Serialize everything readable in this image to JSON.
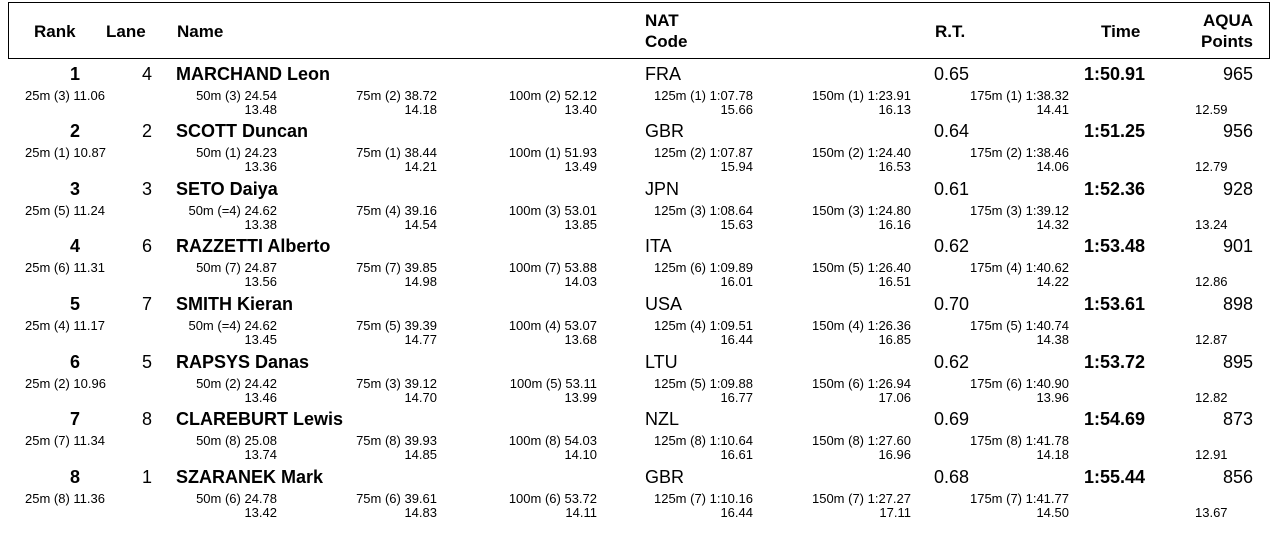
{
  "header": {
    "rank": "Rank",
    "lane": "Lane",
    "name": "Name",
    "nat_line1": "NAT",
    "nat_line2": "Code",
    "rt": "R.T.",
    "time": "Time",
    "points_line1": "AQUA",
    "points_line2": "Points"
  },
  "results": [
    {
      "rank": "1",
      "lane": "4",
      "name": "MARCHAND Leon",
      "nat": "FRA",
      "rt": "0.65",
      "time": "1:50.91",
      "points": "965",
      "splits": [
        {
          "label": "25m (3) 11.06",
          "diff": ""
        },
        {
          "label": "50m (3) 24.54",
          "diff": "13.48"
        },
        {
          "label": "75m (2) 38.72",
          "diff": "14.18"
        },
        {
          "label": "100m (2) 52.12",
          "diff": "13.40"
        },
        {
          "label": "125m (1) 1:07.78",
          "diff": "15.66"
        },
        {
          "label": "150m (1) 1:23.91",
          "diff": "16.13"
        },
        {
          "label": "175m (1) 1:38.32",
          "diff": "14.41"
        }
      ],
      "last_diff": "12.59"
    },
    {
      "rank": "2",
      "lane": "2",
      "name": "SCOTT Duncan",
      "nat": "GBR",
      "rt": "0.64",
      "time": "1:51.25",
      "points": "956",
      "splits": [
        {
          "label": "25m (1) 10.87",
          "diff": ""
        },
        {
          "label": "50m (1) 24.23",
          "diff": "13.36"
        },
        {
          "label": "75m (1) 38.44",
          "diff": "14.21"
        },
        {
          "label": "100m (1) 51.93",
          "diff": "13.49"
        },
        {
          "label": "125m (2) 1:07.87",
          "diff": "15.94"
        },
        {
          "label": "150m (2) 1:24.40",
          "diff": "16.53"
        },
        {
          "label": "175m (2) 1:38.46",
          "diff": "14.06"
        }
      ],
      "last_diff": "12.79"
    },
    {
      "rank": "3",
      "lane": "3",
      "name": "SETO Daiya",
      "nat": "JPN",
      "rt": "0.61",
      "time": "1:52.36",
      "points": "928",
      "splits": [
        {
          "label": "25m (5) 11.24",
          "diff": ""
        },
        {
          "label": "50m (=4) 24.62",
          "diff": "13.38"
        },
        {
          "label": "75m (4) 39.16",
          "diff": "14.54"
        },
        {
          "label": "100m (3) 53.01",
          "diff": "13.85"
        },
        {
          "label": "125m (3) 1:08.64",
          "diff": "15.63"
        },
        {
          "label": "150m (3) 1:24.80",
          "diff": "16.16"
        },
        {
          "label": "175m (3) 1:39.12",
          "diff": "14.32"
        }
      ],
      "last_diff": "13.24"
    },
    {
      "rank": "4",
      "lane": "6",
      "name": "RAZZETTI Alberto",
      "nat": "ITA",
      "rt": "0.62",
      "time": "1:53.48",
      "points": "901",
      "splits": [
        {
          "label": "25m (6) 11.31",
          "diff": ""
        },
        {
          "label": "50m (7) 24.87",
          "diff": "13.56"
        },
        {
          "label": "75m (7) 39.85",
          "diff": "14.98"
        },
        {
          "label": "100m (7) 53.88",
          "diff": "14.03"
        },
        {
          "label": "125m (6) 1:09.89",
          "diff": "16.01"
        },
        {
          "label": "150m (5) 1:26.40",
          "diff": "16.51"
        },
        {
          "label": "175m (4) 1:40.62",
          "diff": "14.22"
        }
      ],
      "last_diff": "12.86"
    },
    {
      "rank": "5",
      "lane": "7",
      "name": "SMITH Kieran",
      "nat": "USA",
      "rt": "0.70",
      "time": "1:53.61",
      "points": "898",
      "splits": [
        {
          "label": "25m (4) 11.17",
          "diff": ""
        },
        {
          "label": "50m (=4) 24.62",
          "diff": "13.45"
        },
        {
          "label": "75m (5) 39.39",
          "diff": "14.77"
        },
        {
          "label": "100m (4) 53.07",
          "diff": "13.68"
        },
        {
          "label": "125m (4) 1:09.51",
          "diff": "16.44"
        },
        {
          "label": "150m (4) 1:26.36",
          "diff": "16.85"
        },
        {
          "label": "175m (5) 1:40.74",
          "diff": "14.38"
        }
      ],
      "last_diff": "12.87"
    },
    {
      "rank": "6",
      "lane": "5",
      "name": "RAPSYS Danas",
      "nat": "LTU",
      "rt": "0.62",
      "time": "1:53.72",
      "points": "895",
      "splits": [
        {
          "label": "25m (2) 10.96",
          "diff": ""
        },
        {
          "label": "50m (2) 24.42",
          "diff": "13.46"
        },
        {
          "label": "75m (3) 39.12",
          "diff": "14.70"
        },
        {
          "label": "100m (5) 53.11",
          "diff": "13.99"
        },
        {
          "label": "125m (5) 1:09.88",
          "diff": "16.77"
        },
        {
          "label": "150m (6) 1:26.94",
          "diff": "17.06"
        },
        {
          "label": "175m (6) 1:40.90",
          "diff": "13.96"
        }
      ],
      "last_diff": "12.82"
    },
    {
      "rank": "7",
      "lane": "8",
      "name": "CLAREBURT Lewis",
      "nat": "NZL",
      "rt": "0.69",
      "time": "1:54.69",
      "points": "873",
      "splits": [
        {
          "label": "25m (7) 11.34",
          "diff": ""
        },
        {
          "label": "50m (8) 25.08",
          "diff": "13.74"
        },
        {
          "label": "75m (8) 39.93",
          "diff": "14.85"
        },
        {
          "label": "100m (8) 54.03",
          "diff": "14.10"
        },
        {
          "label": "125m (8) 1:10.64",
          "diff": "16.61"
        },
        {
          "label": "150m (8) 1:27.60",
          "diff": "16.96"
        },
        {
          "label": "175m (8) 1:41.78",
          "diff": "14.18"
        }
      ],
      "last_diff": "12.91"
    },
    {
      "rank": "8",
      "lane": "1",
      "name": "SZARANEK Mark",
      "nat": "GBR",
      "rt": "0.68",
      "time": "1:55.44",
      "points": "856",
      "splits": [
        {
          "label": "25m (8) 11.36",
          "diff": ""
        },
        {
          "label": "50m (6) 24.78",
          "diff": "13.42"
        },
        {
          "label": "75m (6) 39.61",
          "diff": "14.83"
        },
        {
          "label": "100m (6) 53.72",
          "diff": "14.11"
        },
        {
          "label": "125m (7) 1:10.16",
          "diff": "16.44"
        },
        {
          "label": "150m (7) 1:27.27",
          "diff": "17.11"
        },
        {
          "label": "175m (7) 1:41.77",
          "diff": "14.50"
        }
      ],
      "last_diff": "13.67"
    }
  ]
}
